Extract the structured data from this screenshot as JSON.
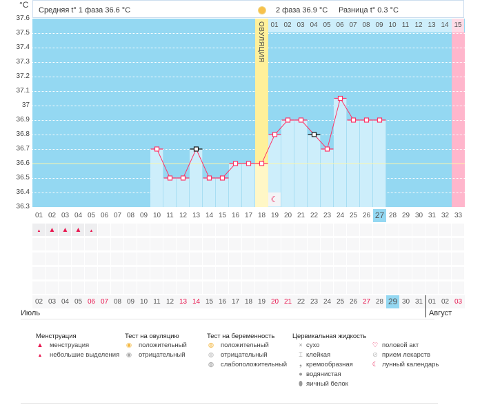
{
  "unit": "°C",
  "header": {
    "phase1": "Средняя t° 1 фаза 36.6 °C",
    "phase2": "2 фаза 36.9 °C",
    "diff": "Разница t° 0.3 °C"
  },
  "ovulation_label": "ОВУЛЯЦИЯ",
  "y_ticks": [
    "37.6",
    "37.5",
    "37.4",
    "37.3",
    "37.2",
    "37.1",
    "37",
    "36.9",
    "36.8",
    "36.7",
    "36.6",
    "36.5",
    "36.4",
    "36.3"
  ],
  "luteal_days": [
    "01",
    "02",
    "03",
    "04",
    "05",
    "06",
    "07",
    "08",
    "09",
    "10",
    "11",
    "12",
    "13",
    "14",
    "15"
  ],
  "cycle_days": [
    "01",
    "02",
    "03",
    "04",
    "05",
    "06",
    "07",
    "08",
    "09",
    "10",
    "11",
    "12",
    "13",
    "14",
    "15",
    "16",
    "17",
    "18",
    "19",
    "20",
    "21",
    "22",
    "23",
    "24",
    "25",
    "26",
    "27",
    "28",
    "29",
    "30",
    "31",
    "32",
    "33"
  ],
  "current_cycle_day": 27,
  "ovulation_day": 18,
  "coverline": 36.6,
  "temperatures": [
    {
      "day": 10,
      "t": 36.7
    },
    {
      "day": 11,
      "t": 36.5
    },
    {
      "day": 12,
      "t": 36.5
    },
    {
      "day": 13,
      "t": 36.7,
      "excluded": true
    },
    {
      "day": 14,
      "t": 36.5
    },
    {
      "day": 15,
      "t": 36.5
    },
    {
      "day": 16,
      "t": 36.6
    },
    {
      "day": 17,
      "t": 36.6
    },
    {
      "day": 18,
      "t": 36.6
    },
    {
      "day": 19,
      "t": 36.8
    },
    {
      "day": 20,
      "t": 36.9
    },
    {
      "day": 21,
      "t": 36.9
    },
    {
      "day": 22,
      "t": 36.8,
      "excluded": true
    },
    {
      "day": 23,
      "t": 36.7
    },
    {
      "day": 24,
      "t": 37.05
    },
    {
      "day": 25,
      "t": 36.9
    },
    {
      "day": 26,
      "t": 36.9
    },
    {
      "day": 27,
      "t": 36.9
    }
  ],
  "moon_day": 19,
  "menstruation": [
    {
      "day": 1,
      "type": "light"
    },
    {
      "day": 2,
      "type": "heavy"
    },
    {
      "day": 3,
      "type": "heavy"
    },
    {
      "day": 4,
      "type": "heavy"
    },
    {
      "day": 5,
      "type": "light"
    }
  ],
  "dates": [
    "02",
    "03",
    "04",
    "05",
    "06",
    "07",
    "08",
    "09",
    "10",
    "11",
    "12",
    "13",
    "14",
    "15",
    "16",
    "17",
    "18",
    "19",
    "20",
    "21",
    "22",
    "23",
    "24",
    "25",
    "26",
    "27",
    "28",
    "29",
    "30",
    "31",
    "01",
    "02",
    "03"
  ],
  "weekend_idx": [
    4,
    5,
    11,
    12,
    18,
    19,
    25,
    32
  ],
  "months": {
    "july": "Июль",
    "august": "Август"
  },
  "legend": {
    "menstruation": {
      "title": "Менструация",
      "items": [
        "менструация",
        "небольшие выделения"
      ]
    },
    "ovulation_test": {
      "title": "Тест на овуляцию",
      "items": [
        "положительный",
        "отрицательный"
      ]
    },
    "pregnancy_test": {
      "title": "Тест на беременность",
      "items": [
        "положительный",
        "отрицательный",
        "слабоположительный"
      ]
    },
    "cervical": {
      "title": "Цервикальная жидкость",
      "items": [
        "сухо",
        "клейкая",
        "кремообразная",
        "водянистая",
        "яичный белок"
      ]
    },
    "other": {
      "items": [
        "половой акт",
        "прием лекарств",
        "лунный календарь"
      ]
    }
  },
  "colors": {
    "plot": "#94d8f2",
    "bar": "#cdeefb",
    "line": "#ff3366",
    "ovulation": "#fff09a",
    "pink": "#ffb6cc",
    "red": "#e8174f"
  }
}
